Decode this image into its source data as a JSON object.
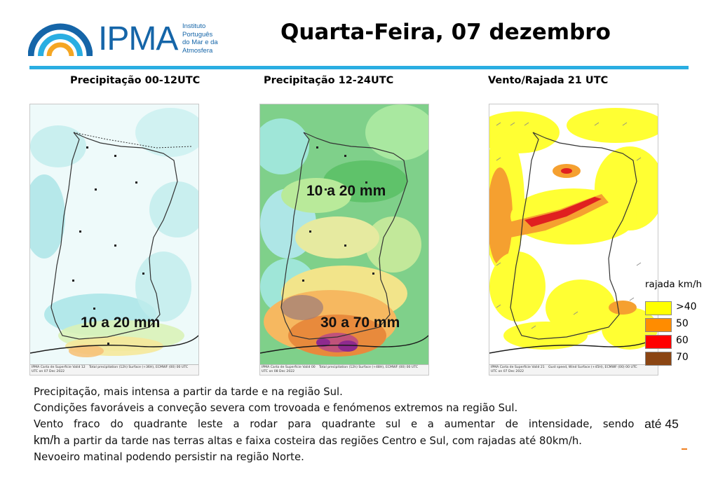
{
  "logo": {
    "wordmark": "IPMA",
    "subtitle_lines": [
      "Instituto",
      "Português",
      "do Mar e da",
      "Atmosfera"
    ],
    "colors": {
      "blue": "#1565a8",
      "cyan": "#2aaee2",
      "orange": "#f5a623"
    }
  },
  "header": {
    "title": "Quarta-Feira, 07 dezembro"
  },
  "panels": [
    {
      "title": "Precipitação 00-12UTC",
      "label": "10 a 20 mm",
      "footer_left": "IPMA Carta de Superfície Valid 12 UTC on 07 Dec 2022",
      "footer_right": "Total precipitation (12h) Surface (+36H), ECMWF (00) 00 UTC"
    },
    {
      "title": "Precipitação 12-24UTC",
      "labels": [
        "10 a 20 mm",
        "30 a 70 mm"
      ],
      "footer_left": "IPMA Carta de Superfície Valid 00 UTC on 08 Dec 2022",
      "footer_right": "Total precipitation (12h) Surface (+48H), ECMWF (00) 00 UTC"
    },
    {
      "title": "Vento/Rajada 21 UTC",
      "footer_left": "IPMA Carta de Superfície Valid 21 UTC on 07 Dec 2022",
      "footer_right": "Gust speed, Wind Surface (+45H), ECMWF (00) 00 UTC"
    }
  ],
  "legend": {
    "title": "rajada km/h",
    "items": [
      {
        "label": ">40",
        "color": "#ffff00"
      },
      {
        "label": "50",
        "color": "#ff8c00"
      },
      {
        "label": "60",
        "color": "#ff0000"
      },
      {
        "label": "70",
        "color": "#8b4513"
      }
    ]
  },
  "description": {
    "line1": "Precipitação, mais intensa a partir da tarde e na região Sul.",
    "line2": "Condições favoráveis a conveção severa com trovoada e fenómenos extremos na região Sul.",
    "line3_words": [
      "Vento",
      "fraco",
      "do",
      "quadrante",
      "leste",
      "a",
      "rodar",
      "para",
      "quadrante",
      "sul",
      "e",
      "a",
      "aumentar",
      "de",
      "intensidade,",
      "sendo"
    ],
    "line3_emph": "até 45",
    "line4_emph": "km/h",
    "line4_rest": " a partir da tarde nas terras altas e faixa costeira das regiões Centro e Sul, com rajadas até 80km/h.",
    "line5": "Nevoeiro matinal podendo persistir na região Norte."
  }
}
